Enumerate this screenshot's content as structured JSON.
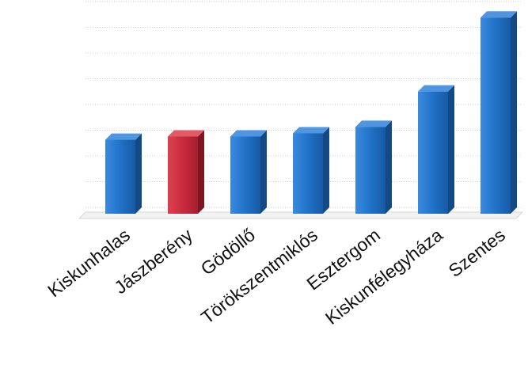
{
  "chart_data": {
    "type": "bar",
    "style": "3d-column",
    "title": "",
    "xlabel": "",
    "ylabel": "",
    "y_tick_labels_shown": false,
    "grid": true,
    "legend": "none",
    "ylim": [
      0,
      6.4
    ],
    "categories": [
      "Kiskunhalas",
      "Jászberény",
      "Gödöllő",
      "Törökszentmiklós",
      "Esztergom",
      "Kiskunfélegyháza",
      "Szentes"
    ],
    "series": [
      {
        "values": [
          2.3,
          2.4,
          2.4,
          2.5,
          2.7,
          3.8,
          6.1
        ]
      }
    ],
    "colors": {
      "default": "#1f6fc4",
      "highlight": "#c8283a",
      "highlight_category": "Jászberény"
    }
  }
}
